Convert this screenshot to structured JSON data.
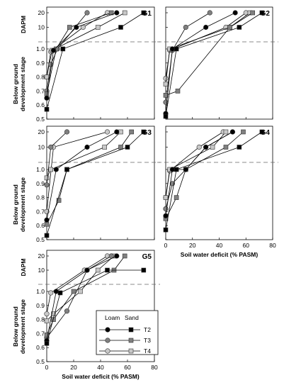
{
  "figure": {
    "series_colors": {
      "T2": "#000000",
      "T3": "#808080",
      "T4": "#c8c8c8"
    },
    "legend": {
      "loam_label": "Loam",
      "sand_label": "Sand",
      "rows": [
        "T2",
        "T3",
        "T4"
      ]
    }
  },
  "chart_data": [
    {
      "type": "line",
      "title": "G1",
      "xlabel": "",
      "ylabel_top": "DAPM",
      "ylabel_bottom": "Below ground development stage",
      "xlim": [
        0,
        80
      ],
      "x_ticks": [],
      "y_upper_ticks": [
        "10",
        "20"
      ],
      "y_lower_ticks": [
        "0.5",
        "0.6",
        "0.7",
        "0.8",
        "0.9",
        "1.0"
      ],
      "series": [
        {
          "soil": "Loam",
          "treatment": "T2",
          "points": [
            [
              "0",
              "0.65"
            ],
            [
              "5",
              "0.99"
            ],
            [
              "22",
              "10"
            ],
            [
              "52",
              "20"
            ]
          ]
        },
        {
          "soil": "Sand",
          "treatment": "T2",
          "points": [
            [
              "0",
              "0.57"
            ],
            [
              "12",
              "1.0"
            ],
            [
              "55",
              "10"
            ],
            [
              "72",
              "20"
            ]
          ]
        },
        {
          "soil": "Loam",
          "treatment": "T3",
          "points": [
            [
              "0",
              "0.70"
            ],
            [
              "3",
              "0.89"
            ],
            [
              "8",
              "1.0"
            ],
            [
              "30",
              "20"
            ]
          ]
        },
        {
          "soil": "Sand",
          "treatment": "T3",
          "points": [
            [
              "0",
              "0.68"
            ],
            [
              "7",
              "1.0"
            ],
            [
              "17",
              "10"
            ],
            [
              "48",
              "20"
            ]
          ]
        },
        {
          "soil": "Loam",
          "treatment": "T4",
          "points": [
            [
              "0",
              "0.80"
            ],
            [
              "3",
              "0.98"
            ],
            [
              "27",
              "10"
            ],
            [
              "45",
              "20"
            ]
          ]
        },
        {
          "soil": "Sand",
          "treatment": "T4",
          "points": [
            [
              "0",
              "0.80"
            ],
            [
              "4",
              "0.99"
            ],
            [
              "38",
              "10"
            ],
            [
              "58",
              "20"
            ]
          ]
        }
      ]
    },
    {
      "type": "line",
      "title": "G2",
      "xlabel": "",
      "ylabel_top": "",
      "ylabel_bottom": "",
      "xlim": [
        0,
        80
      ],
      "x_ticks": [],
      "y_upper_ticks": [],
      "y_lower_ticks": [],
      "series": [
        {
          "soil": "Loam",
          "treatment": "T2",
          "points": [
            [
              "0",
              "0.54"
            ],
            [
              "5",
              "1.0"
            ],
            [
              "30",
              "10"
            ],
            [
              "52",
              "20"
            ]
          ]
        },
        {
          "soil": "Sand",
          "treatment": "T2",
          "points": [
            [
              "0",
              "0.52"
            ],
            [
              "8",
              "1.0"
            ],
            [
              "55",
              "10"
            ],
            [
              "72",
              "20"
            ]
          ]
        },
        {
          "soil": "Loam",
          "treatment": "T3",
          "points": [
            [
              "0",
              "0.62"
            ],
            [
              "5",
              "0.99"
            ],
            [
              "15",
              "10"
            ],
            [
              "33",
              "20"
            ]
          ]
        },
        {
          "soil": "Sand",
          "treatment": "T3",
          "points": [
            [
              "0",
              "0.67"
            ],
            [
              "9",
              "0.70"
            ],
            [
              "48",
              "10"
            ],
            [
              "65",
              "20"
            ]
          ]
        },
        {
          "soil": "Loam",
          "treatment": "T4",
          "points": [
            [
              "0",
              "0.79"
            ],
            [
              "3",
              "0.99"
            ],
            [
              "45",
              "10"
            ],
            [
              "60",
              "20"
            ]
          ]
        },
        {
          "soil": "Sand",
          "treatment": "T4",
          "points": [
            [
              "0",
              "0.75"
            ],
            [
              "3",
              "1.0"
            ],
            [
              "48",
              "10"
            ],
            [
              "63",
              "20"
            ]
          ]
        }
      ]
    },
    {
      "type": "line",
      "title": "G3",
      "xlabel": "",
      "ylabel_top": "",
      "ylabel_bottom": "Below ground development stage",
      "xlim": [
        0,
        80
      ],
      "x_ticks": [],
      "y_upper_ticks": [
        "10",
        "20"
      ],
      "y_lower_ticks": [
        "0.5",
        "0.6",
        "0.7",
        "0.8",
        "0.9",
        "1.0"
      ],
      "series": [
        {
          "soil": "Loam",
          "treatment": "T2",
          "points": [
            [
              "0",
              "0.64"
            ],
            [
              "7",
              "1.0"
            ],
            [
              "30",
              "10"
            ],
            [
              "52",
              "20"
            ]
          ]
        },
        {
          "soil": "Sand",
          "treatment": "T2",
          "points": [
            [
              "0",
              "0.53"
            ],
            [
              "15",
              "1.0"
            ],
            [
              "60",
              "10"
            ],
            [
              "72",
              "20"
            ]
          ]
        },
        {
          "soil": "Loam",
          "treatment": "T3",
          "points": [
            [
              "0",
              "0.89"
            ],
            [
              "3",
              "10"
            ],
            [
              "15",
              "20"
            ]
          ]
        },
        {
          "soil": "Sand",
          "treatment": "T3",
          "points": [
            [
              "0",
              "0.61"
            ],
            [
              "9",
              "0.78"
            ],
            [
              "15",
              "1.0"
            ],
            [
              "55",
              "10"
            ],
            [
              "63",
              "20"
            ]
          ]
        },
        {
          "soil": "Loam",
          "treatment": "T4",
          "points": [
            [
              "0",
              "0.70"
            ],
            [
              "5",
              "10"
            ],
            [
              "45",
              "20"
            ]
          ]
        },
        {
          "soil": "Sand",
          "treatment": "T4",
          "points": [
            [
              "0",
              "0.94"
            ],
            [
              "3",
              "1.0"
            ],
            [
              "43",
              "10"
            ],
            [
              "55",
              "20"
            ]
          ]
        }
      ]
    },
    {
      "type": "line",
      "title": "G4",
      "xlabel": "Soil water deficit (% PASM)",
      "ylabel_top": "",
      "ylabel_bottom": "",
      "xlim": [
        0,
        80
      ],
      "x_ticks": [
        "0",
        "20",
        "40",
        "60",
        "80"
      ],
      "y_upper_ticks": [],
      "y_lower_ticks": [],
      "series": [
        {
          "soil": "Loam",
          "treatment": "T2",
          "points": [
            [
              "0",
              "0.67"
            ],
            [
              "5",
              "1.0"
            ],
            [
              "15",
              "1.0"
            ],
            [
              "30",
              "10"
            ],
            [
              "50",
              "20"
            ]
          ]
        },
        {
          "soil": "Sand",
          "treatment": "T2",
          "points": [
            [
              "0",
              "0.57"
            ],
            [
              "8",
              "1.0"
            ],
            [
              "55",
              "10"
            ],
            [
              "72",
              "20"
            ]
          ]
        },
        {
          "soil": "Loam",
          "treatment": "T3",
          "points": [
            [
              "0",
              "0.72"
            ],
            [
              "5",
              "0.90"
            ],
            [
              "15",
              "1.0"
            ],
            [
              "30",
              "10"
            ],
            [
              "50",
              "20"
            ]
          ]
        },
        {
          "soil": "Sand",
          "treatment": "T3",
          "points": [
            [
              "0",
              "0.65"
            ],
            [
              "8",
              "0.80"
            ],
            [
              "15",
              "1.0"
            ],
            [
              "45",
              "10"
            ],
            [
              "58",
              "20"
            ]
          ]
        },
        {
          "soil": "Loam",
          "treatment": "T4",
          "points": [
            [
              "0",
              "0.80"
            ],
            [
              "3",
              "0.99"
            ],
            [
              "25",
              "10"
            ],
            [
              "43",
              "20"
            ]
          ]
        },
        {
          "soil": "Sand",
          "treatment": "T4",
          "points": [
            [
              "0",
              "0.80"
            ],
            [
              "3",
              "1.0"
            ],
            [
              "35",
              "10"
            ],
            [
              "45",
              "20"
            ]
          ]
        }
      ]
    },
    {
      "type": "line",
      "title": "G5",
      "xlabel": "Soil water deficit (% PASM)",
      "ylabel_top": "DAPM",
      "ylabel_bottom": "Below ground development stage",
      "xlim": [
        0,
        80
      ],
      "x_ticks": [
        "0",
        "20",
        "40",
        "60",
        "80"
      ],
      "y_upper_ticks": [
        "10",
        "20"
      ],
      "y_lower_ticks": [
        "0.5",
        "0.6",
        "0.7",
        "0.8",
        "0.9",
        "1.0"
      ],
      "series": [
        {
          "soil": "Loam",
          "treatment": "T2",
          "points": [
            [
              "0",
              "0.65"
            ],
            [
              "7",
              "1.0"
            ],
            [
              "30",
              "10"
            ],
            [
              "52",
              "20"
            ]
          ]
        },
        {
          "soil": "Sand",
          "treatment": "T2",
          "points": [
            [
              "0",
              "0.63"
            ],
            [
              "10",
              "0.99"
            ],
            [
              "45",
              "10"
            ],
            [
              "72",
              "10"
            ]
          ]
        },
        {
          "soil": "Loam",
          "treatment": "T3",
          "points": [
            [
              "0",
              "0.67"
            ],
            [
              "15",
              "0.86"
            ],
            [
              "30",
              "10"
            ],
            [
              "48",
              "20"
            ]
          ]
        },
        {
          "soil": "Sand",
          "treatment": "T3",
          "points": [
            [
              "0",
              "0.69"
            ],
            [
              "5",
              "0.80"
            ],
            [
              "20",
              "1.0"
            ],
            [
              "50",
              "10"
            ],
            [
              "58",
              "20"
            ]
          ]
        },
        {
          "soil": "Loam",
          "treatment": "T4",
          "points": [
            [
              "0",
              "0.84"
            ],
            [
              "3",
              "0.99"
            ],
            [
              "28",
              "10"
            ],
            [
              "45",
              "20"
            ]
          ]
        },
        {
          "soil": "Sand",
          "treatment": "T4",
          "points": [
            [
              "0",
              "0.79"
            ],
            [
              "5",
              "0.84"
            ],
            [
              "25",
              "1.0"
            ],
            [
              "38",
              "10"
            ],
            [
              "50",
              "20"
            ]
          ]
        }
      ]
    }
  ]
}
